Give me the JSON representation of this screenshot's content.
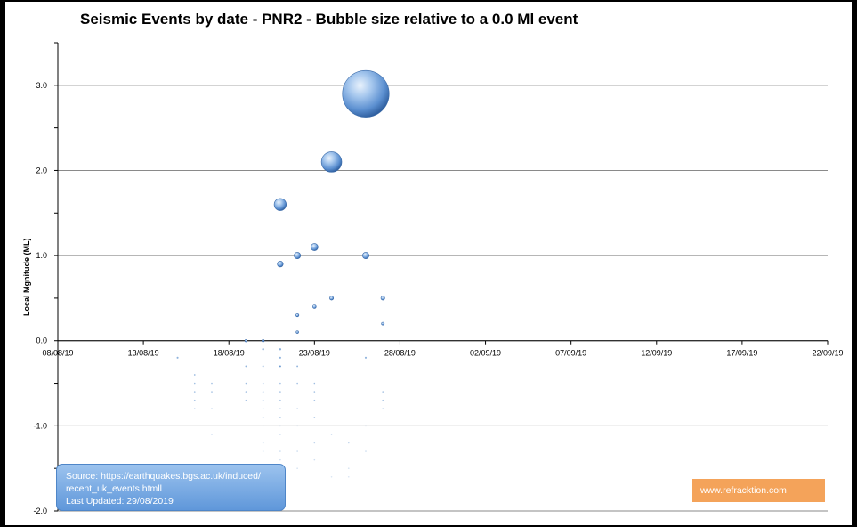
{
  "chart_data": {
    "type": "scatter",
    "subtype": "bubble",
    "title": "Seismic Events by date - PNR2 - Bubble size relative to a 0.0 Ml event",
    "xlabel": "",
    "ylabel": "Local Mgnitude (ML)",
    "ylim": [
      -2.0,
      3.5
    ],
    "xlim": [
      "2019-08-08",
      "2019-09-22"
    ],
    "x_ticks": [
      "08/08/19",
      "13/08/19",
      "18/08/19",
      "23/08/19",
      "28/08/19",
      "02/09/19",
      "07/09/19",
      "12/09/19",
      "17/09/19",
      "22/09/19"
    ],
    "y_ticks": [
      "3.0",
      "2.0",
      "1.0",
      "0.0",
      "-1.0",
      "-2.0"
    ],
    "grid": "horizontal",
    "bubble_color": "#4f86c8",
    "points": [
      {
        "date": "2019-08-15",
        "ml": -0.2
      },
      {
        "date": "2019-08-16",
        "ml": -0.4
      },
      {
        "date": "2019-08-16",
        "ml": -0.5
      },
      {
        "date": "2019-08-16",
        "ml": -0.6
      },
      {
        "date": "2019-08-16",
        "ml": -0.7
      },
      {
        "date": "2019-08-16",
        "ml": -0.8
      },
      {
        "date": "2019-08-17",
        "ml": -0.5
      },
      {
        "date": "2019-08-17",
        "ml": -0.6
      },
      {
        "date": "2019-08-17",
        "ml": -0.8
      },
      {
        "date": "2019-08-17",
        "ml": -1.1
      },
      {
        "date": "2019-08-19",
        "ml": 0.0
      },
      {
        "date": "2019-08-19",
        "ml": -0.3
      },
      {
        "date": "2019-08-19",
        "ml": -0.5
      },
      {
        "date": "2019-08-19",
        "ml": -0.6
      },
      {
        "date": "2019-08-19",
        "ml": -0.7
      },
      {
        "date": "2019-08-20",
        "ml": 0.0
      },
      {
        "date": "2019-08-20",
        "ml": -0.1
      },
      {
        "date": "2019-08-20",
        "ml": -0.3
      },
      {
        "date": "2019-08-20",
        "ml": -0.5
      },
      {
        "date": "2019-08-20",
        "ml": -0.6
      },
      {
        "date": "2019-08-20",
        "ml": -0.7
      },
      {
        "date": "2019-08-20",
        "ml": -0.8
      },
      {
        "date": "2019-08-20",
        "ml": -0.9
      },
      {
        "date": "2019-08-20",
        "ml": -1.0
      },
      {
        "date": "2019-08-20",
        "ml": -1.2
      },
      {
        "date": "2019-08-20",
        "ml": -1.3
      },
      {
        "date": "2019-08-21",
        "ml": 1.6
      },
      {
        "date": "2019-08-21",
        "ml": 0.9
      },
      {
        "date": "2019-08-21",
        "ml": -0.1
      },
      {
        "date": "2019-08-21",
        "ml": -0.2
      },
      {
        "date": "2019-08-21",
        "ml": -0.3
      },
      {
        "date": "2019-08-21",
        "ml": -0.3
      },
      {
        "date": "2019-08-21",
        "ml": -0.5
      },
      {
        "date": "2019-08-21",
        "ml": -0.6
      },
      {
        "date": "2019-08-21",
        "ml": -0.7
      },
      {
        "date": "2019-08-21",
        "ml": -0.8
      },
      {
        "date": "2019-08-21",
        "ml": -0.9
      },
      {
        "date": "2019-08-21",
        "ml": -1.0
      },
      {
        "date": "2019-08-21",
        "ml": -1.1
      },
      {
        "date": "2019-08-21",
        "ml": -1.3
      },
      {
        "date": "2019-08-21",
        "ml": -1.4
      },
      {
        "date": "2019-08-22",
        "ml": 1.0
      },
      {
        "date": "2019-08-22",
        "ml": 0.3
      },
      {
        "date": "2019-08-22",
        "ml": 0.1
      },
      {
        "date": "2019-08-22",
        "ml": -0.3
      },
      {
        "date": "2019-08-22",
        "ml": -0.5
      },
      {
        "date": "2019-08-22",
        "ml": -0.8
      },
      {
        "date": "2019-08-22",
        "ml": -1.0
      },
      {
        "date": "2019-08-22",
        "ml": -1.3
      },
      {
        "date": "2019-08-22",
        "ml": -1.5
      },
      {
        "date": "2019-08-23",
        "ml": 1.1
      },
      {
        "date": "2019-08-23",
        "ml": 0.4
      },
      {
        "date": "2019-08-23",
        "ml": -0.5
      },
      {
        "date": "2019-08-23",
        "ml": -0.6
      },
      {
        "date": "2019-08-23",
        "ml": -0.7
      },
      {
        "date": "2019-08-23",
        "ml": -0.9
      },
      {
        "date": "2019-08-23",
        "ml": -1.2
      },
      {
        "date": "2019-08-23",
        "ml": -1.4
      },
      {
        "date": "2019-08-24",
        "ml": 2.1
      },
      {
        "date": "2019-08-24",
        "ml": 0.5
      },
      {
        "date": "2019-08-24",
        "ml": -1.1
      },
      {
        "date": "2019-08-24",
        "ml": -1.6
      },
      {
        "date": "2019-08-25",
        "ml": -1.2
      },
      {
        "date": "2019-08-25",
        "ml": -1.5
      },
      {
        "date": "2019-08-25",
        "ml": -1.6
      },
      {
        "date": "2019-08-26",
        "ml": 2.9
      },
      {
        "date": "2019-08-26",
        "ml": 1.0
      },
      {
        "date": "2019-08-26",
        "ml": -0.2
      },
      {
        "date": "2019-08-26",
        "ml": -1.0
      },
      {
        "date": "2019-08-26",
        "ml": -1.3
      },
      {
        "date": "2019-08-27",
        "ml": 0.5
      },
      {
        "date": "2019-08-27",
        "ml": 0.2
      },
      {
        "date": "2019-08-27",
        "ml": -0.6
      },
      {
        "date": "2019-08-27",
        "ml": -0.7
      },
      {
        "date": "2019-08-27",
        "ml": -0.8
      }
    ]
  },
  "source_box": {
    "line1": "Source: https://earthquakes.bgs.ac.uk/induced/",
    "line2": "recent_uk_events.htmll",
    "line3": "Last Updated:  29/08/2019"
  },
  "site_label": "www.refracktion.com"
}
